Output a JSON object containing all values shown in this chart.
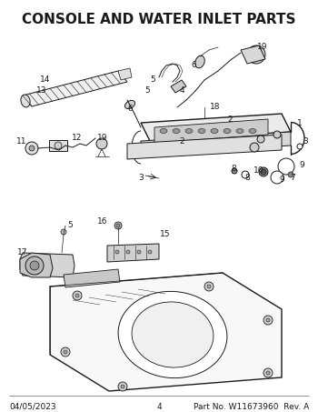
{
  "title": "CONSOLE AND WATER INLET PARTS",
  "title_fontsize": 11,
  "title_weight": "bold",
  "footer_left": "04/05/2023",
  "footer_center": "4",
  "footer_right": "Part No. W11673960  Rev. A",
  "footer_fontsize": 6.5,
  "bg_color": "#ffffff",
  "line_color": "#1a1a1a",
  "label_color": "#1a1a1a",
  "label_fontsize": 6.5,
  "fig_width": 3.5,
  "fig_height": 4.53,
  "dpi": 100
}
